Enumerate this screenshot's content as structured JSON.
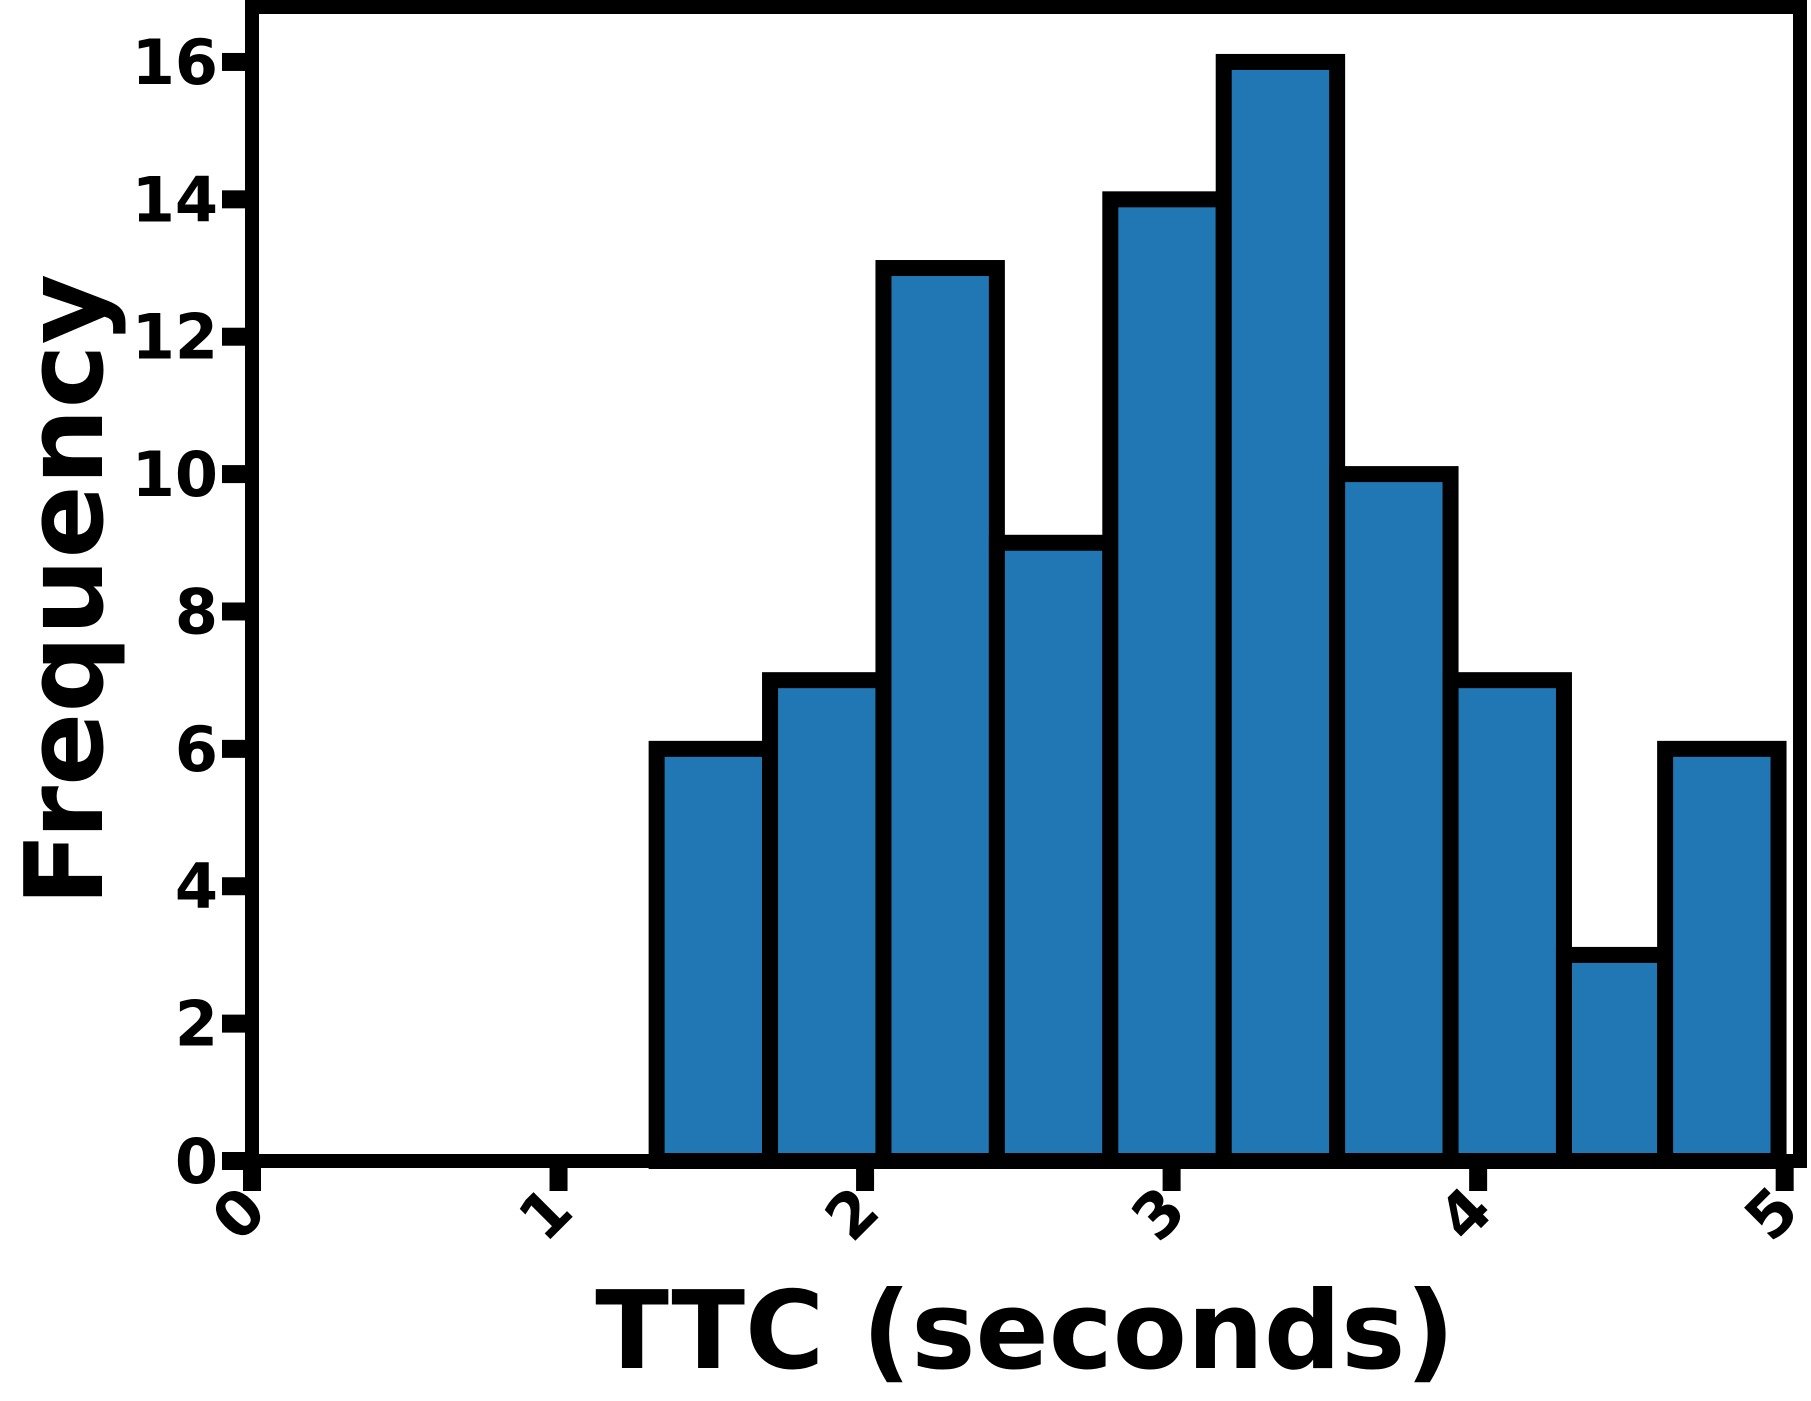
{
  "chart_data": {
    "type": "bar",
    "title": "",
    "xlabel": "TTC (seconds)",
    "ylabel": "Frequency",
    "xlim": [
      0,
      5.05
    ],
    "ylim": [
      0,
      16.8
    ],
    "xticks": [
      "0",
      "1",
      "2",
      "3",
      "4",
      "5"
    ],
    "yticks": [
      "0",
      "2",
      "4",
      "6",
      "8",
      "10",
      "12",
      "14",
      "16"
    ],
    "bin_edges": [
      1.32,
      1.69,
      2.06,
      2.43,
      2.8,
      3.17,
      3.54,
      3.91,
      4.28,
      4.61,
      4.98
    ],
    "values": [
      6,
      7,
      13,
      9,
      14,
      16,
      10,
      7,
      3,
      6
    ],
    "grid": false,
    "colors": {
      "bar_fill": "#2077b4",
      "bar_edge": "#000000",
      "axes": "#000000"
    }
  }
}
